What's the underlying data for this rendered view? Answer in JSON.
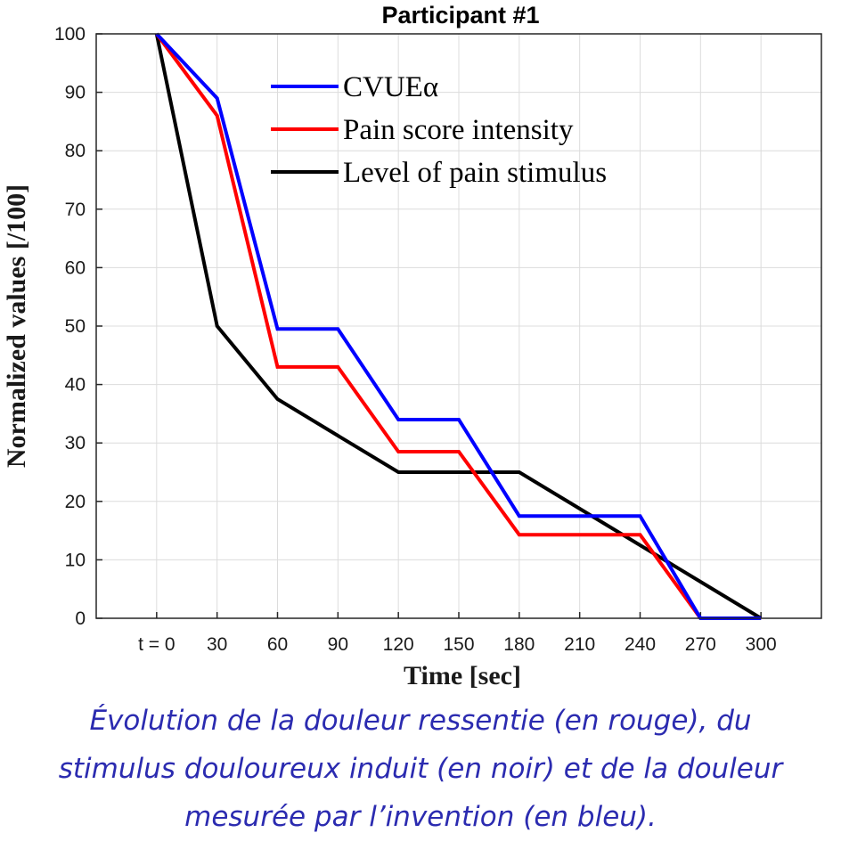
{
  "chart_data": {
    "type": "line",
    "title": "Participant #1",
    "xlabel": "Time [sec]",
    "ylabel": "Normalized values [/100]",
    "x_tick_labels": [
      "t = 0",
      "30",
      "60",
      "90",
      "120",
      "150",
      "180",
      "210",
      "240",
      "270",
      "300"
    ],
    "x_ticks": [
      0,
      30,
      60,
      90,
      120,
      150,
      180,
      210,
      240,
      270,
      300
    ],
    "y_ticks": [
      0,
      10,
      20,
      30,
      40,
      50,
      60,
      70,
      80,
      90,
      100
    ],
    "xlim": [
      -30,
      330
    ],
    "ylim": [
      0,
      100
    ],
    "grid": true,
    "legend_position": "top-center",
    "series": [
      {
        "name": "CVUEα",
        "color": "#0000ff",
        "x": [
          0,
          30,
          60,
          90,
          120,
          150,
          180,
          210,
          240,
          270,
          300
        ],
        "y": [
          100,
          89,
          49.5,
          49.5,
          34,
          34,
          17.5,
          17.5,
          17.5,
          0,
          0
        ]
      },
      {
        "name": "Pain score intensity",
        "color": "#ff0000",
        "x": [
          0,
          30,
          60,
          90,
          120,
          150,
          180,
          210,
          240,
          270,
          300
        ],
        "y": [
          100,
          86,
          43,
          43,
          28.5,
          28.5,
          14.3,
          14.3,
          14.3,
          0,
          0
        ]
      },
      {
        "name": "Level of pain stimulus",
        "color": "#000000",
        "x": [
          0,
          30,
          60,
          90,
          120,
          150,
          180,
          210,
          240,
          270,
          300
        ],
        "y": [
          100,
          50,
          37.5,
          31.25,
          25,
          25,
          25,
          18.75,
          12.5,
          6.25,
          0
        ]
      }
    ]
  },
  "caption": {
    "line1": "Évolution de la douleur ressentie (en rouge), du",
    "line2": "stimulus douloureux induit (en noir) et de la douleur",
    "line3": "mesurée par l’invention (en bleu)."
  }
}
